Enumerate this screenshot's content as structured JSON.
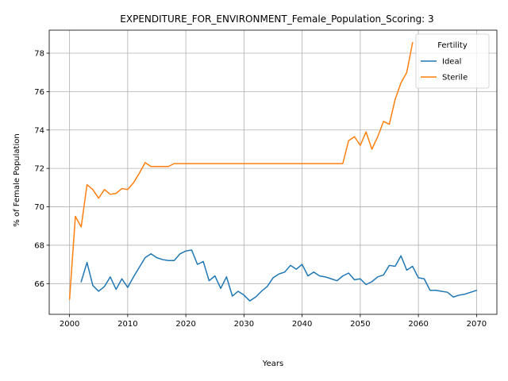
{
  "chart_data": {
    "type": "line",
    "title": "EXPENDITURE_FOR_ENVIRONMENT_Female_Population_Scoring: 3",
    "xlabel": "Years",
    "ylabel": "% of Female Population",
    "xlim": [
      1996.5,
      2073.5
    ],
    "ylim": [
      64.4,
      79.2
    ],
    "xticks": [
      2000,
      2010,
      2020,
      2030,
      2040,
      2050,
      2060,
      2070
    ],
    "yticks": [
      66,
      68,
      70,
      72,
      74,
      76,
      78
    ],
    "grid": true,
    "legend": {
      "title": "Fertility",
      "position": "top-right"
    },
    "series": [
      {
        "name": "Ideal",
        "color": "#1f77b4",
        "x": [
          2002,
          2003,
          2004,
          2005,
          2006,
          2007,
          2008,
          2009,
          2010,
          2011,
          2012,
          2013,
          2014,
          2015,
          2016,
          2017,
          2018,
          2019,
          2020,
          2021,
          2022,
          2023,
          2024,
          2025,
          2026,
          2027,
          2028,
          2029,
          2030,
          2031,
          2032,
          2033,
          2034,
          2035,
          2036,
          2037,
          2038,
          2039,
          2040,
          2041,
          2042,
          2043,
          2044,
          2045,
          2046,
          2047,
          2048,
          2049,
          2050,
          2051,
          2052,
          2053,
          2054,
          2055,
          2056,
          2057,
          2058,
          2059,
          2060,
          2061,
          2062,
          2063,
          2064,
          2065,
          2066,
          2067,
          2068,
          2069,
          2070
        ],
        "values": [
          66.1,
          67.1,
          65.9,
          65.6,
          65.85,
          66.35,
          65.7,
          66.25,
          65.8,
          66.35,
          66.85,
          67.35,
          67.55,
          67.35,
          67.25,
          67.2,
          67.2,
          67.55,
          67.7,
          67.75,
          67.0,
          67.15,
          66.15,
          66.4,
          65.75,
          66.35,
          65.35,
          65.6,
          65.4,
          65.1,
          65.3,
          65.6,
          65.85,
          66.3,
          66.5,
          66.6,
          66.95,
          66.75,
          67.0,
          66.4,
          66.6,
          66.4,
          66.35,
          66.25,
          66.15,
          66.4,
          66.55,
          66.2,
          66.25,
          65.95,
          66.1,
          66.35,
          66.45,
          66.95,
          66.9,
          67.45,
          66.7,
          66.9,
          66.3,
          66.25,
          65.65,
          65.65,
          65.6,
          65.55,
          65.3,
          65.4,
          65.45,
          65.55,
          65.65
        ]
      },
      {
        "name": "Sterile",
        "color": "#ff7f0e",
        "x": [
          2000,
          2001,
          2002,
          2003,
          2004,
          2005,
          2006,
          2007,
          2008,
          2009,
          2010,
          2011,
          2012,
          2013,
          2014,
          2015,
          2016,
          2017,
          2018,
          2019,
          2020,
          2021,
          2022,
          2023,
          2024,
          2025,
          2026,
          2027,
          2028,
          2029,
          2030,
          2031,
          2032,
          2033,
          2034,
          2035,
          2036,
          2037,
          2038,
          2039,
          2040,
          2041,
          2042,
          2043,
          2044,
          2045,
          2046,
          2047,
          2048,
          2049,
          2050,
          2051,
          2052,
          2053,
          2054,
          2055,
          2056,
          2057,
          2058,
          2059
        ],
        "values": [
          65.2,
          69.5,
          68.95,
          71.15,
          70.9,
          70.45,
          70.9,
          70.65,
          70.7,
          70.95,
          70.9,
          71.25,
          71.75,
          72.3,
          72.1,
          72.1,
          72.1,
          72.1,
          72.25,
          72.25,
          72.25,
          72.25,
          72.25,
          72.25,
          72.25,
          72.25,
          72.25,
          72.25,
          72.25,
          72.25,
          72.25,
          72.25,
          72.25,
          72.25,
          72.25,
          72.25,
          72.25,
          72.25,
          72.25,
          72.25,
          72.25,
          72.25,
          72.25,
          72.25,
          72.25,
          72.25,
          72.25,
          72.25,
          73.45,
          73.65,
          73.2,
          73.9,
          73.0,
          73.65,
          74.45,
          74.3,
          75.6,
          76.45,
          77.0,
          78.55
        ]
      }
    ]
  }
}
